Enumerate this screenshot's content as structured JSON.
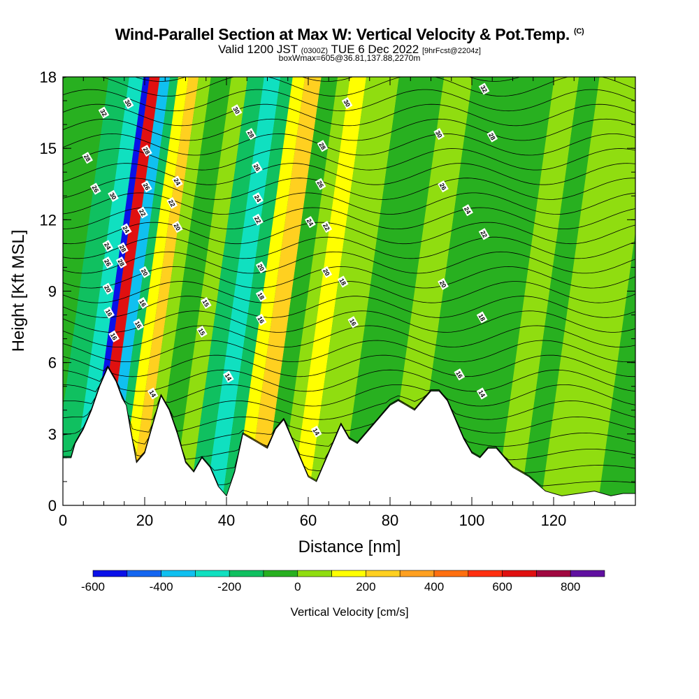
{
  "chart_data": {
    "type": "heatmap",
    "title": "Wind-Parallel Section at Max W: Vertical Velocity & Pot.Temp.",
    "title_mark": "(C)",
    "subtitle_parts": [
      "Valid 1200 JST",
      "(0300Z)",
      "TUE 6 Dec 2022",
      "[9hrFcst@2204z]"
    ],
    "subtitle2": "boxWmax=605@36.81,137.88,2270m",
    "xlabel": "Distance [nm]",
    "ylabel": "Height [Kft MSL]",
    "xlim": [
      0,
      140
    ],
    "ylim": [
      0,
      18
    ],
    "x_ticks": [
      "0",
      "20",
      "40",
      "60",
      "80",
      "100",
      "120"
    ],
    "y_ticks": [
      "0",
      "3",
      "6",
      "9",
      "12",
      "15",
      "18"
    ],
    "colorbar": {
      "label": "Vertical Velocity [cm/s]",
      "range": [
        -600,
        900
      ],
      "tick_labels": [
        "-600",
        "-400",
        "-200",
        "0",
        "200",
        "400",
        "600",
        "800"
      ],
      "colors": [
        "#0a10e8",
        "#1466f0",
        "#10c0f0",
        "#10e0c0",
        "#10c060",
        "#28b020",
        "#90dd10",
        "#ffff00",
        "#ffd020",
        "#ffa020",
        "#ff7010",
        "#ff3010",
        "#e01010",
        "#a00840",
        "#6010a0"
      ]
    },
    "band_ranges": [
      {
        "from": -600,
        "to": -500
      },
      {
        "from": -500,
        "to": -400
      },
      {
        "from": -400,
        "to": -300
      },
      {
        "from": -300,
        "to": -200
      },
      {
        "from": -200,
        "to": -100
      },
      {
        "from": -100,
        "to": 0
      },
      {
        "from": 0,
        "to": 100
      },
      {
        "from": 100,
        "to": 200
      },
      {
        "from": 200,
        "to": 300
      },
      {
        "from": 300,
        "to": 400
      },
      {
        "from": 400,
        "to": 500
      },
      {
        "from": 500,
        "to": 600
      },
      {
        "from": 600,
        "to": 700
      },
      {
        "from": 700,
        "to": 800
      },
      {
        "from": 800,
        "to": 900
      }
    ],
    "terrain_kft": [
      [
        0,
        2.0
      ],
      [
        2,
        2.0
      ],
      [
        3,
        2.6
      ],
      [
        5,
        3.2
      ],
      [
        7,
        4.0
      ],
      [
        9,
        5.0
      ],
      [
        11,
        5.8
      ],
      [
        13,
        5.2
      ],
      [
        14.5,
        4.5
      ],
      [
        15.5,
        4.2
      ],
      [
        16.5,
        3.2
      ],
      [
        18,
        1.8
      ],
      [
        20,
        2.2
      ],
      [
        22,
        3.4
      ],
      [
        24,
        4.6
      ],
      [
        26,
        4.0
      ],
      [
        28,
        3.0
      ],
      [
        30,
        1.8
      ],
      [
        32,
        1.4
      ],
      [
        34,
        2.0
      ],
      [
        36,
        1.6
      ],
      [
        38,
        0.8
      ],
      [
        40,
        0.4
      ],
      [
        42,
        1.4
      ],
      [
        44,
        3.0
      ],
      [
        46,
        2.8
      ],
      [
        48,
        2.6
      ],
      [
        50,
        2.4
      ],
      [
        52,
        3.2
      ],
      [
        54,
        3.6
      ],
      [
        56,
        2.8
      ],
      [
        58,
        2.0
      ],
      [
        60,
        1.2
      ],
      [
        62,
        1.0
      ],
      [
        64,
        1.8
      ],
      [
        66,
        2.6
      ],
      [
        68,
        3.4
      ],
      [
        70,
        2.8
      ],
      [
        72,
        2.6
      ],
      [
        74,
        3.0
      ],
      [
        76,
        3.4
      ],
      [
        78,
        3.8
      ],
      [
        80,
        4.2
      ],
      [
        82,
        4.4
      ],
      [
        84,
        4.2
      ],
      [
        86,
        4.0
      ],
      [
        88,
        4.4
      ],
      [
        90,
        4.8
      ],
      [
        92,
        4.8
      ],
      [
        94,
        4.4
      ],
      [
        96,
        3.6
      ],
      [
        98,
        2.8
      ],
      [
        100,
        2.2
      ],
      [
        102,
        2.0
      ],
      [
        104,
        2.4
      ],
      [
        106,
        2.4
      ],
      [
        110,
        1.6
      ],
      [
        114,
        1.2
      ],
      [
        118,
        0.6
      ],
      [
        122,
        0.4
      ],
      [
        126,
        0.5
      ],
      [
        130,
        0.6
      ],
      [
        134,
        0.4
      ],
      [
        137,
        0.5
      ],
      [
        138,
        0.5
      ]
    ],
    "velocity_bands": [
      {
        "x0": 0,
        "x1": 4,
        "w": -50
      },
      {
        "x0": 4,
        "x1": 9,
        "w": -150
      },
      {
        "x0": 9,
        "x1": 12.5,
        "w": -250
      },
      {
        "x0": 12.5,
        "x1": 14,
        "w": -550
      },
      {
        "x0": 14,
        "x1": 16.5,
        "w": 650
      },
      {
        "x0": 16.5,
        "x1": 19,
        "w": -350
      },
      {
        "x0": 19,
        "x1": 21,
        "w": -150
      },
      {
        "x0": 21,
        "x1": 23.5,
        "w": 150
      },
      {
        "x0": 23.5,
        "x1": 26,
        "w": 250
      },
      {
        "x0": 26,
        "x1": 29,
        "w": 50
      },
      {
        "x0": 29,
        "x1": 34,
        "w": -50
      },
      {
        "x0": 34,
        "x1": 38,
        "w": 50
      },
      {
        "x0": 38,
        "x1": 42,
        "w": -150
      },
      {
        "x0": 42,
        "x1": 46,
        "w": -250
      },
      {
        "x0": 46,
        "x1": 49,
        "w": -150
      },
      {
        "x0": 49,
        "x1": 52,
        "w": 150
      },
      {
        "x0": 52,
        "x1": 56,
        "w": 250
      },
      {
        "x0": 56,
        "x1": 60,
        "w": -50
      },
      {
        "x0": 60,
        "x1": 63,
        "w": 50
      },
      {
        "x0": 63,
        "x1": 67,
        "w": 150
      },
      {
        "x0": 67,
        "x1": 75,
        "w": 50
      },
      {
        "x0": 75,
        "x1": 86,
        "w": -50
      },
      {
        "x0": 86,
        "x1": 93,
        "w": 50
      },
      {
        "x0": 93,
        "x1": 113,
        "w": -50
      },
      {
        "x0": 113,
        "x1": 119,
        "w": 50
      },
      {
        "x0": 119,
        "x1": 124,
        "w": -50
      },
      {
        "x0": 124,
        "x1": 138,
        "w": 50
      }
    ],
    "isentrope_labels": [
      {
        "x": 6,
        "y": 14.6,
        "t": "28"
      },
      {
        "x": 10,
        "y": 16.5,
        "t": "32"
      },
      {
        "x": 16,
        "y": 16.9,
        "t": "30"
      },
      {
        "x": 8,
        "y": 13.3,
        "t": "26"
      },
      {
        "x": 12.3,
        "y": 13.0,
        "t": "30"
      },
      {
        "x": 20.5,
        "y": 14.9,
        "t": "28"
      },
      {
        "x": 20.5,
        "y": 13.4,
        "t": "26"
      },
      {
        "x": 19.5,
        "y": 12.3,
        "t": "22"
      },
      {
        "x": 15.5,
        "y": 11.6,
        "t": "24"
      },
      {
        "x": 14.7,
        "y": 10.8,
        "t": "28"
      },
      {
        "x": 11,
        "y": 10.9,
        "t": "24"
      },
      {
        "x": 11,
        "y": 10.2,
        "t": "26"
      },
      {
        "x": 14.3,
        "y": 10.2,
        "t": "28"
      },
      {
        "x": 20,
        "y": 9.8,
        "t": "20"
      },
      {
        "x": 11,
        "y": 9.1,
        "t": "20"
      },
      {
        "x": 11.3,
        "y": 8.1,
        "t": "16"
      },
      {
        "x": 19.6,
        "y": 8.5,
        "t": "16"
      },
      {
        "x": 18.5,
        "y": 7.6,
        "t": "16"
      },
      {
        "x": 12.5,
        "y": 7.1,
        "t": "16"
      },
      {
        "x": 28,
        "y": 13.6,
        "t": "24"
      },
      {
        "x": 26.7,
        "y": 12.7,
        "t": "22"
      },
      {
        "x": 28,
        "y": 11.7,
        "t": "20"
      },
      {
        "x": 35,
        "y": 8.5,
        "t": "15"
      },
      {
        "x": 34,
        "y": 7.3,
        "t": "15"
      },
      {
        "x": 40.5,
        "y": 5.4,
        "t": "14"
      },
      {
        "x": 22,
        "y": 4.7,
        "t": "14"
      },
      {
        "x": 42.5,
        "y": 16.6,
        "t": "30"
      },
      {
        "x": 46,
        "y": 15.6,
        "t": "28"
      },
      {
        "x": 47.5,
        "y": 14.2,
        "t": "26"
      },
      {
        "x": 47.7,
        "y": 12.9,
        "t": "24"
      },
      {
        "x": 47.7,
        "y": 12.0,
        "t": "22"
      },
      {
        "x": 48.5,
        "y": 10.0,
        "t": "20"
      },
      {
        "x": 48.5,
        "y": 8.8,
        "t": "18"
      },
      {
        "x": 48.5,
        "y": 7.8,
        "t": "16"
      },
      {
        "x": 69.5,
        "y": 16.9,
        "t": "30"
      },
      {
        "x": 63.5,
        "y": 15.1,
        "t": "28"
      },
      {
        "x": 63,
        "y": 13.5,
        "t": "26"
      },
      {
        "x": 60.5,
        "y": 11.9,
        "t": "24"
      },
      {
        "x": 64.5,
        "y": 11.7,
        "t": "22"
      },
      {
        "x": 64.5,
        "y": 9.8,
        "t": "20"
      },
      {
        "x": 68.5,
        "y": 9.4,
        "t": "18"
      },
      {
        "x": 71,
        "y": 7.7,
        "t": "16"
      },
      {
        "x": 62,
        "y": 3.1,
        "t": "14"
      },
      {
        "x": 103,
        "y": 17.5,
        "t": "32"
      },
      {
        "x": 92,
        "y": 15.6,
        "t": "30"
      },
      {
        "x": 105,
        "y": 15.5,
        "t": "28"
      },
      {
        "x": 93,
        "y": 13.4,
        "t": "26"
      },
      {
        "x": 99,
        "y": 12.4,
        "t": "24"
      },
      {
        "x": 103,
        "y": 11.4,
        "t": "22"
      },
      {
        "x": 93,
        "y": 9.3,
        "t": "20"
      },
      {
        "x": 102.5,
        "y": 7.9,
        "t": "18"
      },
      {
        "x": 97,
        "y": 5.5,
        "t": "16"
      },
      {
        "x": 102.5,
        "y": 4.7,
        "t": "14"
      }
    ]
  }
}
